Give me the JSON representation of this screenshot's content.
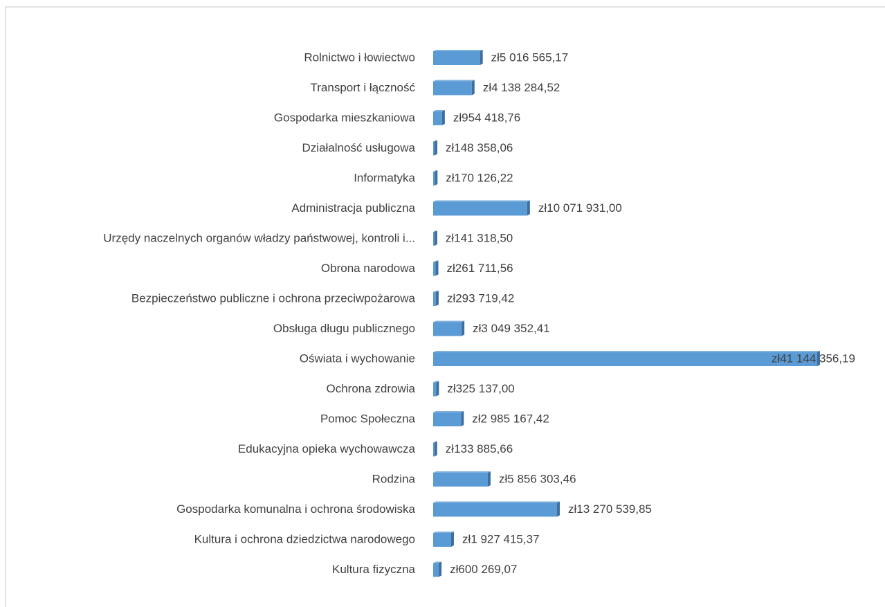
{
  "chart_data": {
    "type": "bar",
    "orientation": "horizontal",
    "categories": [
      "Rolnictwo i łowiectwo",
      "Transport i łączność",
      "Gospodarka mieszkaniowa",
      "Działalność usługowa",
      "Informatyka",
      "Administracja publiczna",
      "Urzędy naczelnych organów władzy państwowej, kontroli i...",
      "Obrona narodowa",
      "Bezpieczeństwo publiczne i ochrona przeciwpożarowa",
      "Obsługa długu publicznego",
      "Oświata i wychowanie",
      "Ochrona zdrowia",
      "Pomoc Społeczna",
      "Edukacyjna opieka wychowawcza",
      "Rodzina",
      "Gospodarka komunalna i ochrona środowiska",
      "Kultura i ochrona dziedzictwa narodowego",
      "Kultura fizyczna"
    ],
    "values": [
      5016565.17,
      4138284.52,
      954418.76,
      148358.06,
      170126.22,
      10071931.0,
      141318.5,
      261711.56,
      293719.42,
      3049352.41,
      41144356.19,
      325137.0,
      2985167.42,
      133885.66,
      5856303.46,
      13270539.85,
      1927415.37,
      600269.07
    ],
    "value_labels": [
      "zł5 016 565,17",
      "zł4 138 284,52",
      "zł954 418,76",
      "zł148 358,06",
      "zł170 126,22",
      "zł10 071 931,00",
      "zł141 318,50",
      "zł261 711,56",
      "zł293 719,42",
      "zł3 049 352,41",
      "zł41 144 356,19",
      "zł325 137,00",
      "zł2 985 167,42",
      "zł133 885,66",
      "zł5 856 303,46",
      "zł13 270 539,85",
      "zł1 927 415,37",
      "zł600 269,07"
    ],
    "color": "#5b9bd5"
  }
}
